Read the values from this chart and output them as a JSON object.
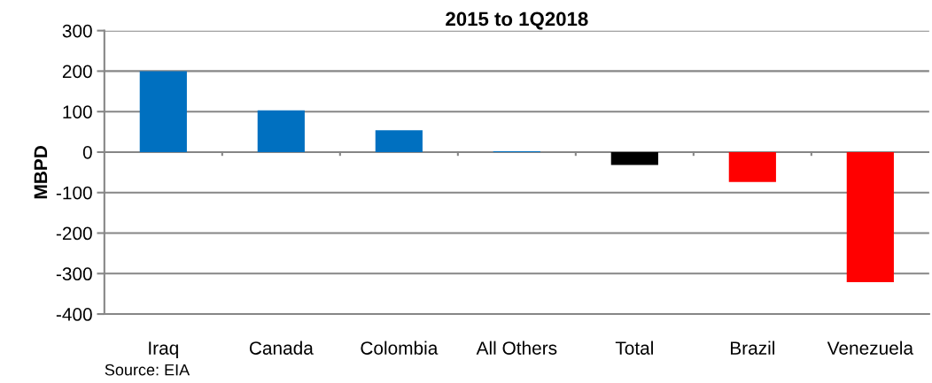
{
  "chart_data": {
    "type": "bar",
    "title": "2015 to 1Q2018",
    "ylabel": "MBPD",
    "categories": [
      "Iraq",
      "Canada",
      "Colombia",
      "All Others",
      "Total",
      "Brazil",
      "Venezuela"
    ],
    "values": [
      200,
      103,
      54,
      2,
      -32,
      -74,
      -321
    ],
    "colors": [
      "#0070c0",
      "#0070c0",
      "#0070c0",
      "#0070c0",
      "#000000",
      "#ff0000",
      "#ff0000"
    ],
    "ylim": [
      -400,
      300
    ],
    "yticks": [
      -400,
      -300,
      -200,
      -100,
      0,
      100,
      200,
      300
    ],
    "grid": "y",
    "annotations": [
      "Source: EIA"
    ]
  }
}
